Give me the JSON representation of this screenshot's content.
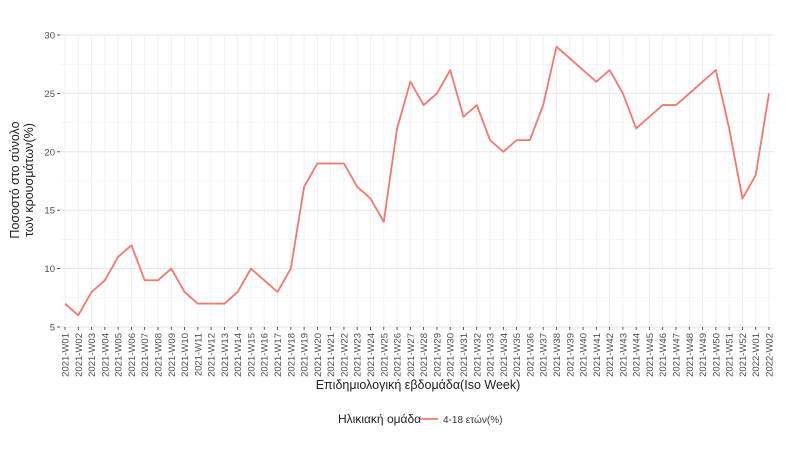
{
  "chart_data": {
    "type": "line",
    "xlabel": "Επιδημιολογική εβδομάδα(Iso Week)",
    "ylabel_lines": [
      "Ποσοστό στο σύνολο",
      "των κρουσμάτων(%)"
    ],
    "ylim": [
      5,
      30
    ],
    "yticks": [
      5,
      10,
      15,
      20,
      25,
      30
    ],
    "grid": true,
    "legend_position": "bottom",
    "legend_title": "Ηλικιακή ομάδα",
    "categories": [
      "2021-W01",
      "2021-W02",
      "2021-W03",
      "2021-W04",
      "2021-W05",
      "2021-W06",
      "2021-W07",
      "2021-W08",
      "2021-W09",
      "2021-W10",
      "2021-W11",
      "2021-W12",
      "2021-W13",
      "2021-W14",
      "2021-W15",
      "2021-W16",
      "2021-W17",
      "2021-W18",
      "2021-W19",
      "2021-W20",
      "2021-W21",
      "2021-W22",
      "2021-W23",
      "2021-W24",
      "2021-W25",
      "2021-W26",
      "2021-W27",
      "2021-W28",
      "2021-W29",
      "2021-W30",
      "2021-W31",
      "2021-W32",
      "2021-W33",
      "2021-W34",
      "2021-W35",
      "2021-W36",
      "2021-W37",
      "2021-W38",
      "2021-W39",
      "2021-W40",
      "2021-W41",
      "2021-W42",
      "2021-W43",
      "2021-W44",
      "2021-W45",
      "2021-W46",
      "2021-W47",
      "2021-W48",
      "2021-W49",
      "2021-W50",
      "2021-W51",
      "2021-W52",
      "2022-W01",
      "2022-W02"
    ],
    "series": [
      {
        "name": "4-18 ετών(%)",
        "color": "#F8766D",
        "values": [
          7,
          6,
          8,
          9,
          11,
          12,
          9,
          9,
          10,
          8,
          7,
          7,
          7,
          8,
          10,
          9,
          8,
          10,
          17,
          19,
          19,
          19,
          17,
          16,
          14,
          22,
          26,
          24,
          25,
          27,
          23,
          24,
          21,
          20,
          21,
          21,
          24,
          29,
          28,
          27,
          26,
          27,
          25,
          22,
          23,
          24,
          24,
          25,
          26,
          27,
          22,
          16,
          18,
          25
        ]
      }
    ]
  }
}
